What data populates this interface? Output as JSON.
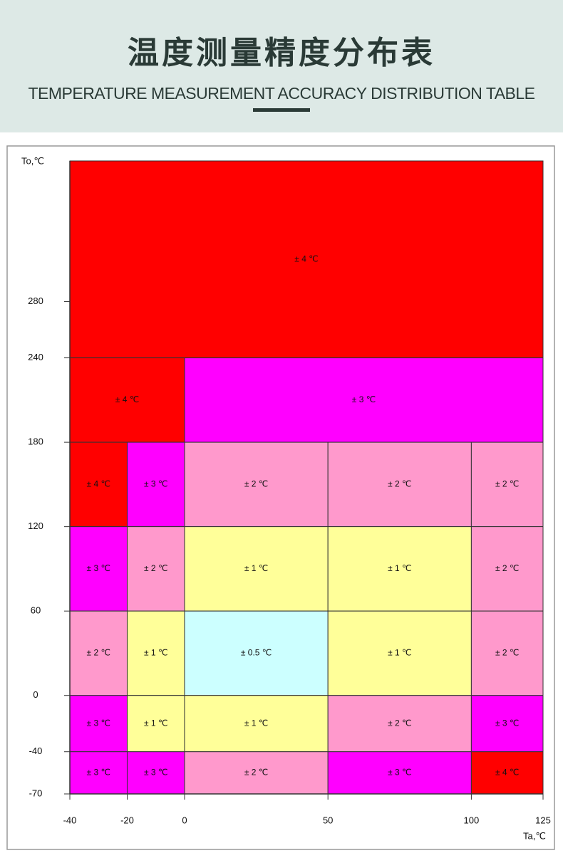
{
  "header": {
    "title": "温度测量精度分布表",
    "subtitle": "TEMPERATURE MEASUREMENT ACCURACY DISTRIBUTION TABLE"
  },
  "chart_data": {
    "type": "region",
    "x_label": "Ta,℃",
    "y_label": "To,℃",
    "xlim": [
      -40,
      125
    ],
    "xticks": [
      -40,
      -20,
      0,
      50,
      100,
      125
    ],
    "ylim": [
      -70,
      380
    ],
    "yticks": [
      -70,
      -40,
      0,
      60,
      120,
      180,
      240,
      280
    ],
    "regions": [
      {
        "x": [
          -40,
          125
        ],
        "y": [
          240,
          380
        ],
        "label": "± 4 ℃",
        "color": "#ff0000"
      },
      {
        "x": [
          -40,
          0
        ],
        "y": [
          180,
          240
        ],
        "label": "± 4 ℃",
        "color": "#ff0000"
      },
      {
        "x": [
          0,
          125
        ],
        "y": [
          180,
          240
        ],
        "label": "± 3 ℃",
        "color": "#ff00ff"
      },
      {
        "x": [
          -40,
          -20
        ],
        "y": [
          120,
          180
        ],
        "label": "± 4 ℃",
        "color": "#ff0000"
      },
      {
        "x": [
          -20,
          0
        ],
        "y": [
          120,
          180
        ],
        "label": "± 3 ℃",
        "color": "#ff00ff"
      },
      {
        "x": [
          0,
          50
        ],
        "y": [
          120,
          180
        ],
        "label": "± 2 ℃",
        "color": "#ff99cc"
      },
      {
        "x": [
          50,
          100
        ],
        "y": [
          120,
          180
        ],
        "label": "± 2 ℃",
        "color": "#ff99cc"
      },
      {
        "x": [
          100,
          125
        ],
        "y": [
          120,
          180
        ],
        "label": "± 2 ℃",
        "color": "#ff99cc"
      },
      {
        "x": [
          -40,
          -20
        ],
        "y": [
          60,
          120
        ],
        "label": "± 3 ℃",
        "color": "#ff00ff"
      },
      {
        "x": [
          -20,
          0
        ],
        "y": [
          60,
          120
        ],
        "label": "± 2 ℃",
        "color": "#ff99cc"
      },
      {
        "x": [
          0,
          50
        ],
        "y": [
          60,
          120
        ],
        "label": "± 1 ℃",
        "color": "#ffff99"
      },
      {
        "x": [
          50,
          100
        ],
        "y": [
          60,
          120
        ],
        "label": "± 1 ℃",
        "color": "#ffff99"
      },
      {
        "x": [
          100,
          125
        ],
        "y": [
          60,
          120
        ],
        "label": "± 2 ℃",
        "color": "#ff99cc"
      },
      {
        "x": [
          -40,
          -20
        ],
        "y": [
          0,
          60
        ],
        "label": "± 2 ℃",
        "color": "#ff99cc"
      },
      {
        "x": [
          -20,
          0
        ],
        "y": [
          0,
          60
        ],
        "label": "± 1 ℃",
        "color": "#ffff99"
      },
      {
        "x": [
          0,
          50
        ],
        "y": [
          0,
          60
        ],
        "label": "± 0.5 ℃",
        "color": "#ccffff"
      },
      {
        "x": [
          50,
          100
        ],
        "y": [
          0,
          60
        ],
        "label": "± 1 ℃",
        "color": "#ffff99"
      },
      {
        "x": [
          100,
          125
        ],
        "y": [
          0,
          60
        ],
        "label": "± 2 ℃",
        "color": "#ff99cc"
      },
      {
        "x": [
          -40,
          -20
        ],
        "y": [
          -40,
          0
        ],
        "label": "± 3 ℃",
        "color": "#ff00ff"
      },
      {
        "x": [
          -20,
          0
        ],
        "y": [
          -40,
          0
        ],
        "label": "± 1 ℃",
        "color": "#ffff99"
      },
      {
        "x": [
          0,
          50
        ],
        "y": [
          -40,
          0
        ],
        "label": "± 1 ℃",
        "color": "#ffff99"
      },
      {
        "x": [
          50,
          100
        ],
        "y": [
          -40,
          0
        ],
        "label": "± 2 ℃",
        "color": "#ff99cc"
      },
      {
        "x": [
          100,
          125
        ],
        "y": [
          -40,
          0
        ],
        "label": "± 3 ℃",
        "color": "#ff00ff"
      },
      {
        "x": [
          -40,
          -20
        ],
        "y": [
          -70,
          -40
        ],
        "label": "± 3 ℃",
        "color": "#ff00ff"
      },
      {
        "x": [
          -20,
          0
        ],
        "y": [
          -70,
          -40
        ],
        "label": "± 3 ℃",
        "color": "#ff00ff"
      },
      {
        "x": [
          0,
          50
        ],
        "y": [
          -70,
          -40
        ],
        "label": "± 2 ℃",
        "color": "#ff99cc"
      },
      {
        "x": [
          50,
          100
        ],
        "y": [
          -70,
          -40
        ],
        "label": "± 3 ℃",
        "color": "#ff00ff"
      },
      {
        "x": [
          100,
          125
        ],
        "y": [
          -70,
          -40
        ],
        "label": "± 4 ℃",
        "color": "#ff0000"
      }
    ]
  }
}
